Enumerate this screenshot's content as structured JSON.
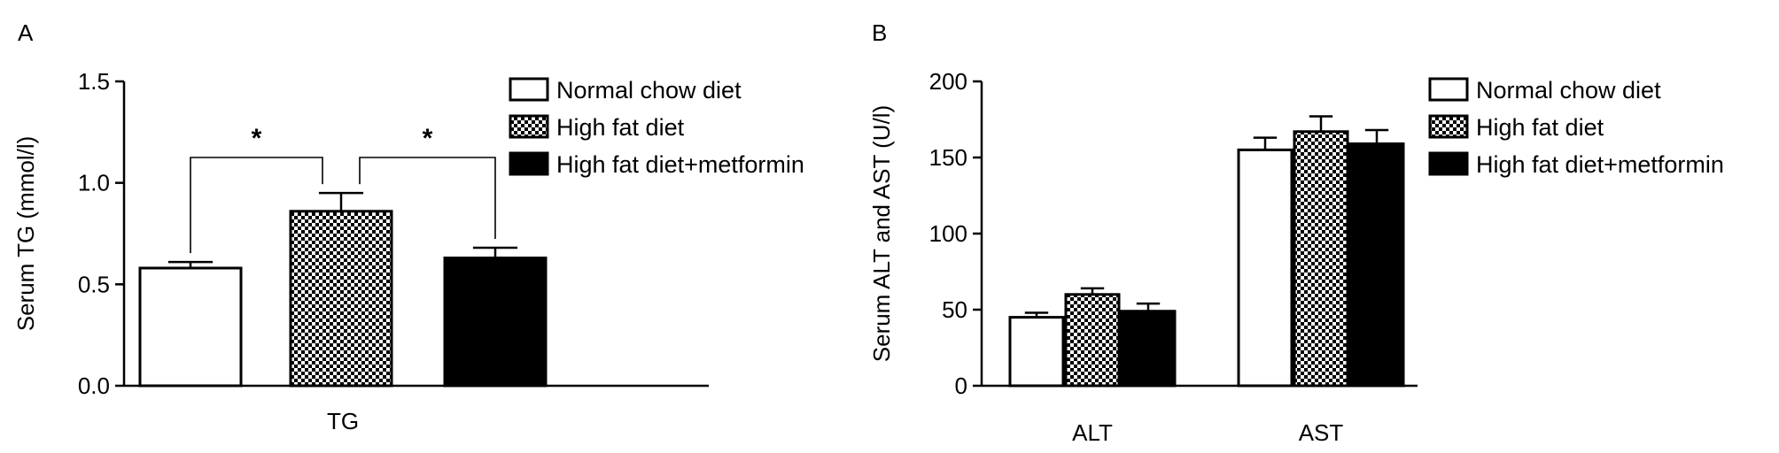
{
  "colors": {
    "background": "#ffffff",
    "ink": "#000000",
    "normal": "#ffffff",
    "high_fat": "checkerboard",
    "metformin": "#000000"
  },
  "chart_data": [
    {
      "panel_label": "A",
      "type": "bar",
      "ylabel": "Serum TG (mmol/l)",
      "xlabel": "",
      "categories": [
        "TG"
      ],
      "ylim": [
        0,
        1.5
      ],
      "yticks": [
        "0.0",
        "0.5",
        "1.0",
        "1.5"
      ],
      "grid": false,
      "legend_position": "top-right",
      "series": [
        {
          "name": "Normal chow diet",
          "fill": "white",
          "values": [
            0.58
          ],
          "errors": [
            0.03
          ]
        },
        {
          "name": "High fat diet",
          "fill": "checker",
          "values": [
            0.86
          ],
          "errors": [
            0.09
          ]
        },
        {
          "name": "High fat diet+metformin",
          "fill": "black",
          "values": [
            0.63
          ],
          "errors": [
            0.05
          ]
        }
      ],
      "annotations": [
        {
          "text": "*",
          "from_series": 0,
          "to_series": 1
        },
        {
          "text": "*",
          "from_series": 1,
          "to_series": 2
        }
      ]
    },
    {
      "panel_label": "B",
      "type": "bar",
      "ylabel": "Serum ALT and AST (U/l)",
      "xlabel": "",
      "categories": [
        "ALT",
        "AST"
      ],
      "ylim": [
        0,
        200
      ],
      "yticks": [
        "0",
        "50",
        "100",
        "150",
        "200"
      ],
      "grid": false,
      "legend_position": "top-right",
      "series": [
        {
          "name": "Normal chow diet",
          "fill": "white",
          "values": [
            45,
            155
          ],
          "errors": [
            3,
            8
          ]
        },
        {
          "name": "High fat diet",
          "fill": "checker",
          "values": [
            60,
            167
          ],
          "errors": [
            4,
            10
          ]
        },
        {
          "name": "High fat diet+metformin",
          "fill": "black",
          "values": [
            49,
            159
          ],
          "errors": [
            5,
            9
          ]
        }
      ],
      "annotations": []
    }
  ]
}
